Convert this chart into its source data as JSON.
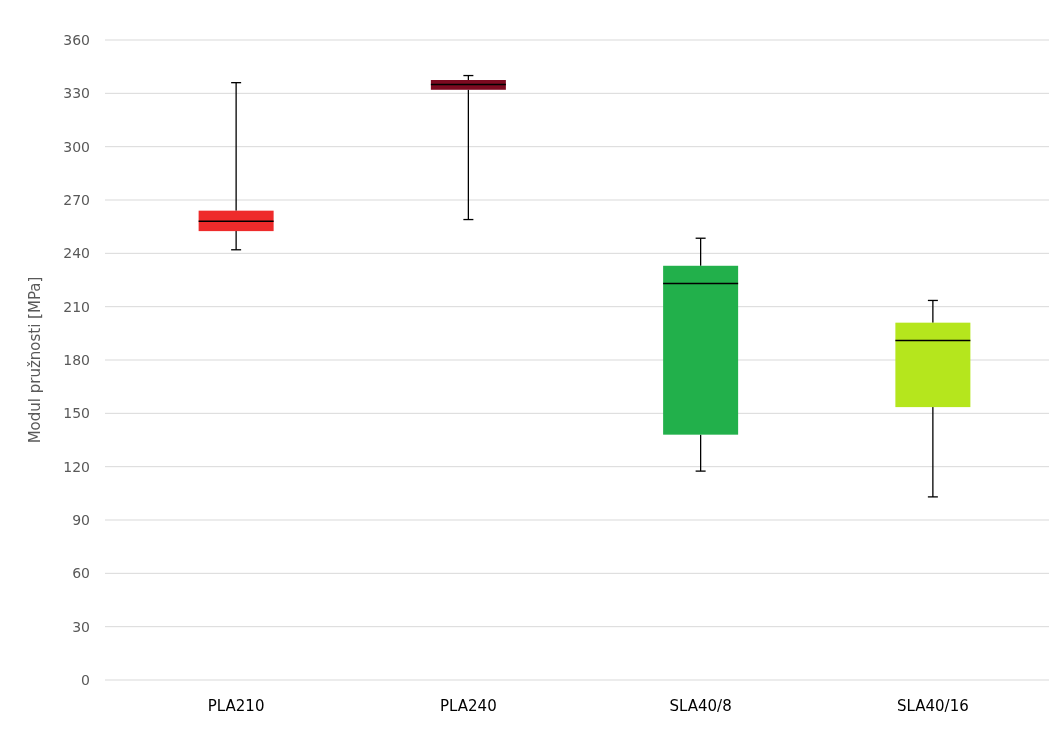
{
  "chart_data": {
    "type": "box",
    "ylabel": "Modul pružnosti [MPa]",
    "categories": [
      "PLA210",
      "PLA240",
      "SLA40/8",
      "SLA40/16"
    ],
    "boxes": [
      {
        "low": 242,
        "q1": 252.5,
        "median": 258,
        "q3": 264,
        "high": 336
      },
      {
        "low": 259,
        "q1": 332,
        "median": 335,
        "q3": 337.5,
        "high": 340
      },
      {
        "low": 117.5,
        "q1": 138,
        "median": 223,
        "q3": 233,
        "high": 248.5
      },
      {
        "low": 103,
        "q1": 153.5,
        "median": 191,
        "q3": 201,
        "high": 213.5
      }
    ],
    "colors": [
      "#ee2b2b",
      "#7c0a20",
      "#22b04b",
      "#b5e61d"
    ],
    "ylim": [
      0,
      360
    ],
    "yticks": [
      0,
      30,
      60,
      90,
      120,
      150,
      180,
      210,
      240,
      270,
      300,
      330,
      360
    ],
    "grid": "y"
  }
}
